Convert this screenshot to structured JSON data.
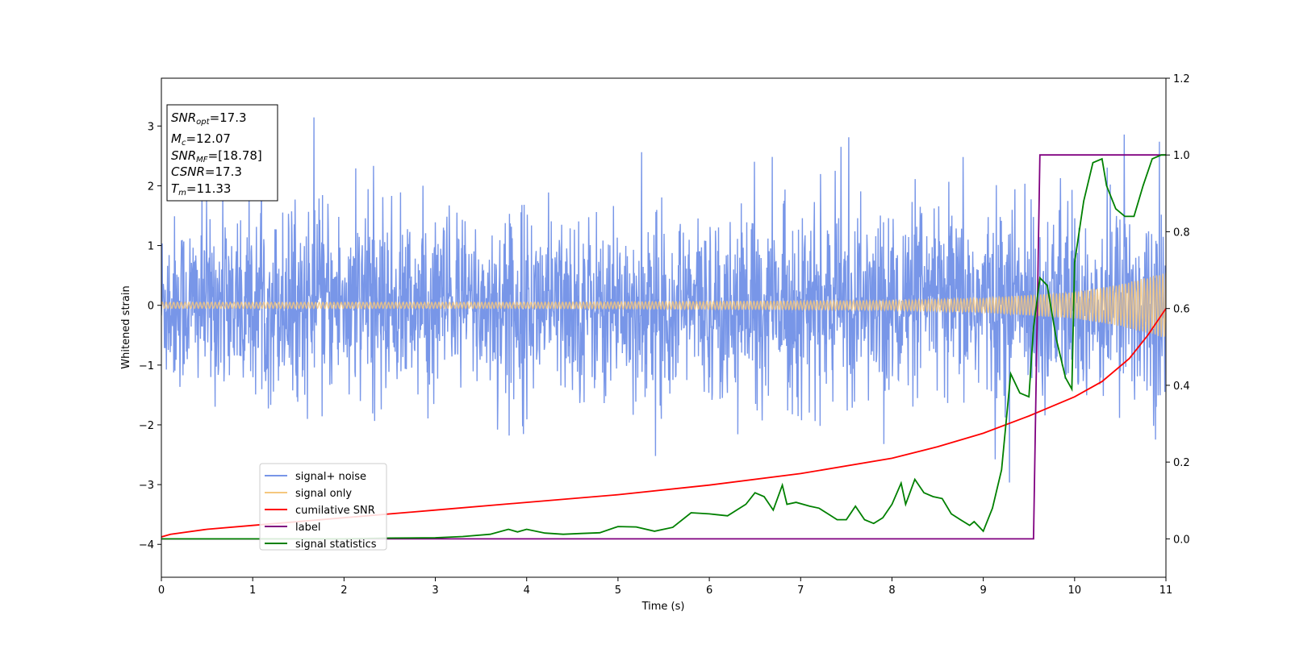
{
  "chart_data": {
    "type": "line",
    "xlabel": "Time (s)",
    "ylabel": "Whitened strain",
    "xlim": [
      0,
      11
    ],
    "ylim": [
      -4.55,
      3.8
    ],
    "y2lim": [
      -0.1,
      1.2
    ],
    "x_ticks": [
      "0",
      "1",
      "2",
      "3",
      "4",
      "5",
      "6",
      "7",
      "8",
      "9",
      "10",
      "11"
    ],
    "y_ticks": [
      "−4",
      "−3",
      "−2",
      "−1",
      "0",
      "1",
      "2",
      "3"
    ],
    "y2_ticks": [
      "0.0",
      "0.2",
      "0.4",
      "0.6",
      "0.8",
      "1.0",
      "1.2"
    ],
    "grid": false,
    "legend_position": "lower-left",
    "info_box": {
      "snr_opt_label": "SNR",
      "snr_opt_sub": "opt",
      "snr_opt_value": "=17.3",
      "mc_label": "M",
      "mc_sub": "c",
      "mc_value": "=12.07",
      "snr_mf_label": "SNR",
      "snr_mf_sub": "MF",
      "snr_mf_value": "=[18.78]",
      "csnr_label": "CSNR",
      "csnr_value": "=17.3",
      "tm_label": "T",
      "tm_sub": "m",
      "tm_value": "=11.33"
    },
    "series": [
      {
        "name": "signal+ noise",
        "color": "#7896e8",
        "axis": "left",
        "description_envelope": {
          "t": [
            0,
            2,
            4,
            6,
            8,
            9.5,
            10,
            10.5,
            11
          ],
          "upper": [
            1.7,
            1.8,
            1.7,
            1.7,
            1.8,
            1.9,
            1.9,
            2.0,
            2.0
          ],
          "lower": [
            -1.6,
            -1.7,
            -1.7,
            -1.7,
            -1.8,
            -1.8,
            -1.9,
            -1.9,
            -2.0
          ]
        }
      },
      {
        "name": "signal only",
        "color": "#f5c77e",
        "axis": "left",
        "amplitude": {
          "t": [
            0,
            4,
            8,
            9,
            10,
            10.5,
            11
          ],
          "a": [
            0.05,
            0.05,
            0.08,
            0.12,
            0.22,
            0.35,
            0.55
          ]
        }
      },
      {
        "name": "cumilative SNR",
        "color": "#ff0000",
        "axis": "right",
        "x": [
          0,
          0.1,
          0.5,
          1,
          2,
          3,
          4,
          5,
          6,
          7,
          8,
          8.5,
          9,
          9.5,
          10,
          10.3,
          10.6,
          10.8,
          11
        ],
        "y": [
          0.005,
          0.012,
          0.025,
          0.035,
          0.055,
          0.075,
          0.095,
          0.115,
          0.14,
          0.17,
          0.21,
          0.24,
          0.275,
          0.32,
          0.37,
          0.41,
          0.47,
          0.53,
          0.6
        ]
      },
      {
        "name": "label",
        "color": "#800080",
        "axis": "right",
        "x": [
          0,
          9.55,
          9.62,
          11
        ],
        "y": [
          0,
          0,
          1,
          1
        ]
      },
      {
        "name": "signal statistics",
        "color": "#008000",
        "axis": "right",
        "x": [
          0,
          1,
          2,
          2.5,
          3,
          3.3,
          3.6,
          3.8,
          3.9,
          4.0,
          4.2,
          4.4,
          4.6,
          4.8,
          5.0,
          5.2,
          5.4,
          5.6,
          5.8,
          6.0,
          6.2,
          6.4,
          6.5,
          6.6,
          6.7,
          6.8,
          6.85,
          6.95,
          7.1,
          7.2,
          7.3,
          7.4,
          7.5,
          7.6,
          7.7,
          7.8,
          7.9,
          8.0,
          8.1,
          8.15,
          8.25,
          8.35,
          8.45,
          8.55,
          8.65,
          8.75,
          8.85,
          8.9,
          9.0,
          9.1,
          9.2,
          9.3,
          9.4,
          9.5,
          9.55,
          9.62,
          9.7,
          9.8,
          9.9,
          9.97,
          10.0,
          10.1,
          10.2,
          10.3,
          10.35,
          10.45,
          10.55,
          10.65,
          10.75,
          10.85,
          10.95,
          11
        ],
        "y": [
          0,
          0,
          0,
          0.002,
          0.003,
          0.006,
          0.012,
          0.025,
          0.018,
          0.025,
          0.015,
          0.012,
          0.014,
          0.016,
          0.032,
          0.031,
          0.02,
          0.03,
          0.068,
          0.065,
          0.06,
          0.09,
          0.12,
          0.11,
          0.075,
          0.14,
          0.09,
          0.095,
          0.085,
          0.08,
          0.065,
          0.05,
          0.05,
          0.085,
          0.05,
          0.04,
          0.055,
          0.09,
          0.145,
          0.09,
          0.155,
          0.12,
          0.11,
          0.105,
          0.065,
          0.05,
          0.035,
          0.045,
          0.02,
          0.08,
          0.18,
          0.43,
          0.38,
          0.37,
          0.55,
          0.68,
          0.66,
          0.52,
          0.42,
          0.39,
          0.72,
          0.88,
          0.98,
          0.99,
          0.92,
          0.86,
          0.84,
          0.84,
          0.92,
          0.99,
          1.0,
          1.0
        ]
      }
    ]
  }
}
